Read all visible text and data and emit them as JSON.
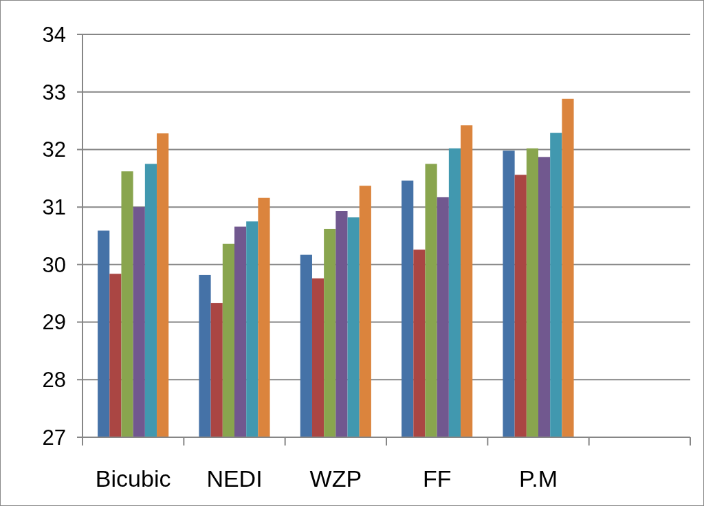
{
  "chart_data": {
    "type": "bar",
    "categories": [
      "Bicubic",
      "NEDI",
      "WZP",
      "FF",
      "P.M",
      null
    ],
    "series": [
      {
        "color": "#4572a7",
        "values": [
          30.59,
          29.82,
          30.17,
          31.46,
          31.98,
          null
        ]
      },
      {
        "color": "#aa4643",
        "values": [
          29.84,
          29.33,
          29.76,
          30.26,
          31.56,
          null
        ]
      },
      {
        "color": "#89a54e",
        "values": [
          31.62,
          30.36,
          30.62,
          31.75,
          32.02,
          null
        ]
      },
      {
        "color": "#71588f",
        "values": [
          31.0,
          30.66,
          30.93,
          31.17,
          31.87,
          null
        ]
      },
      {
        "color": "#4198af",
        "values": [
          31.75,
          30.75,
          30.82,
          32.02,
          32.29,
          null
        ]
      },
      {
        "color": "#db843d",
        "values": [
          32.28,
          31.16,
          31.37,
          32.42,
          32.88,
          null
        ]
      }
    ],
    "ylim": [
      27,
      34
    ],
    "yticks": [
      27,
      28,
      29,
      30,
      31,
      32,
      33,
      34
    ],
    "grid": "y"
  }
}
